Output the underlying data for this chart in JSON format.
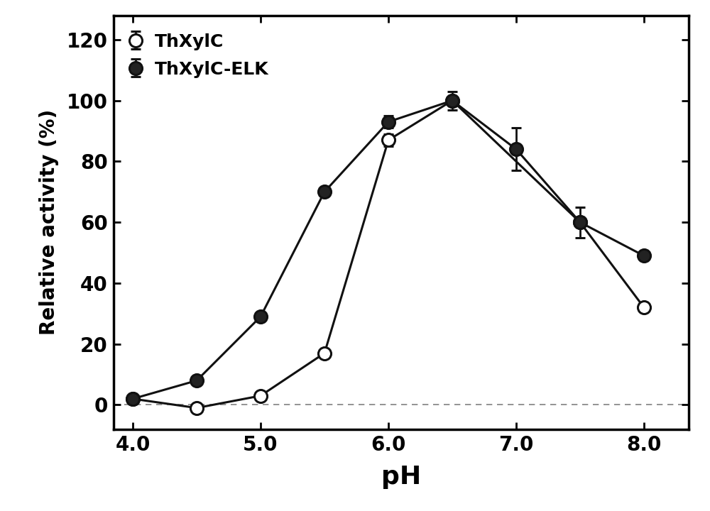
{
  "ThXylC_x": [
    4.0,
    4.5,
    5.0,
    5.5,
    6.0,
    6.5,
    7.5,
    8.0
  ],
  "ThXylC_y": [
    2,
    -1,
    3,
    17,
    87,
    100,
    60,
    32
  ],
  "ThXylC_yerr": [
    0,
    0,
    0,
    0,
    2,
    0,
    0,
    0
  ],
  "ThXylC_ELK_x": [
    4.0,
    4.5,
    5.0,
    5.5,
    6.0,
    6.5,
    7.0,
    7.5,
    8.0
  ],
  "ThXylC_ELK_y": [
    2,
    8,
    29,
    70,
    93,
    100,
    84,
    60,
    49
  ],
  "ThXylC_ELK_yerr": [
    0,
    0,
    0,
    0,
    2,
    3,
    7,
    5,
    0
  ],
  "xlabel": "pH",
  "ylabel": "Relative activity (%)",
  "xlim": [
    3.85,
    8.35
  ],
  "ylim": [
    -8,
    128
  ],
  "xticks": [
    4.0,
    5.0,
    6.0,
    7.0,
    8.0
  ],
  "yticks": [
    0,
    20,
    40,
    60,
    80,
    100,
    120
  ],
  "legend_labels": [
    "ThXylC",
    "ThXylC-ELK"
  ],
  "line_color": "#111111",
  "open_marker_color": "white",
  "filled_marker_color": "#222222",
  "marker_size": 13,
  "line_width": 2.2,
  "dashed_line_y": 0,
  "background_color": "white",
  "xlabel_fontsize": 26,
  "ylabel_fontsize": 20,
  "tick_fontsize": 20,
  "legend_fontsize": 18
}
